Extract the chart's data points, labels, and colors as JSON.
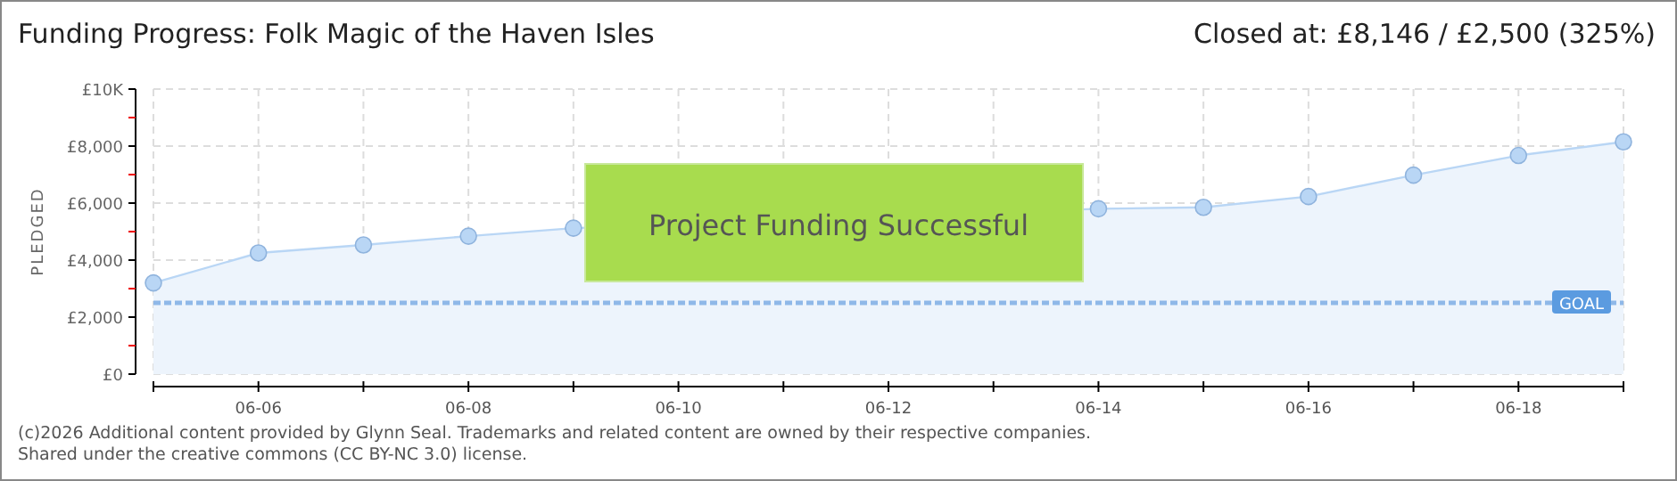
{
  "chart_data": {
    "type": "area",
    "title": "Funding Progress: Folk Magic of the Haven Isles",
    "subtitle": "Closed at:  £8,146 /  £2,500 (325%)",
    "ylabel": "PLEDGED",
    "x": [
      "--06-05",
      "--06-06",
      "--06-07",
      "--06-08",
      "--06-09",
      "--06-10",
      "--06-11",
      "--06-12",
      "--06-13",
      "--06-14",
      "--06-15",
      "--06-16",
      "--06-17",
      "--06-18",
      "--06-19"
    ],
    "series": [
      {
        "color": "#b9d6f5",
        "values": [
          3200,
          4250,
          4530,
          4840,
          5120,
          null,
          null,
          null,
          null,
          5800,
          5850,
          6230,
          6980,
          7670,
          8150
        ]
      }
    ],
    "xlim": [
      "--06-05",
      "--06-19"
    ],
    "xticks": [
      {
        "value": "--06-05",
        "label": null
      },
      {
        "value": "--06-06",
        "label": "06-06"
      },
      {
        "value": "--06-07",
        "label": null
      },
      {
        "value": "--06-08",
        "label": "06-08"
      },
      {
        "value": "--06-09",
        "label": null
      },
      {
        "value": "--06-10",
        "label": "06-10"
      },
      {
        "value": "--06-11",
        "label": null
      },
      {
        "value": "--06-12",
        "label": "06-12"
      },
      {
        "value": "--06-13",
        "label": null
      },
      {
        "value": "--06-14",
        "label": "06-14"
      },
      {
        "value": "--06-15",
        "label": null
      },
      {
        "value": "--06-16",
        "label": "06-16"
      },
      {
        "value": "--06-17",
        "label": null
      },
      {
        "value": "--06-18",
        "label": "06-18"
      },
      {
        "value": "--06-19",
        "label": null
      }
    ],
    "ylim": [
      0,
      10000
    ],
    "yticks": [
      {
        "value": 0,
        "label": "£0"
      },
      {
        "value": 1000,
        "label": null
      },
      {
        "value": 2000,
        "label": "£2,000"
      },
      {
        "value": 3000,
        "label": null
      },
      {
        "value": 4000,
        "label": "£4,000"
      },
      {
        "value": 5000,
        "label": null
      },
      {
        "value": 6000,
        "label": "£6,000"
      },
      {
        "value": 7000,
        "label": null
      },
      {
        "value": 8000,
        "label": "£8,000"
      },
      {
        "value": 9000,
        "label": null
      },
      {
        "value": 10000,
        "label": "£10K"
      }
    ],
    "grid": true,
    "marker": "circle",
    "ref_lines": [
      {
        "axis": "y",
        "value": 2500,
        "label": "GOAL",
        "color": "#8fb8e8",
        "line_style": "dashed"
      }
    ],
    "annotations": [
      "Project Funding Successful",
      "(c)2026 Additional content provided by Glynn Seal. Trademarks and related content are owned by their respective companies.",
      "Shared under the creative commons (CC BY-NC 3.0) license."
    ]
  }
}
